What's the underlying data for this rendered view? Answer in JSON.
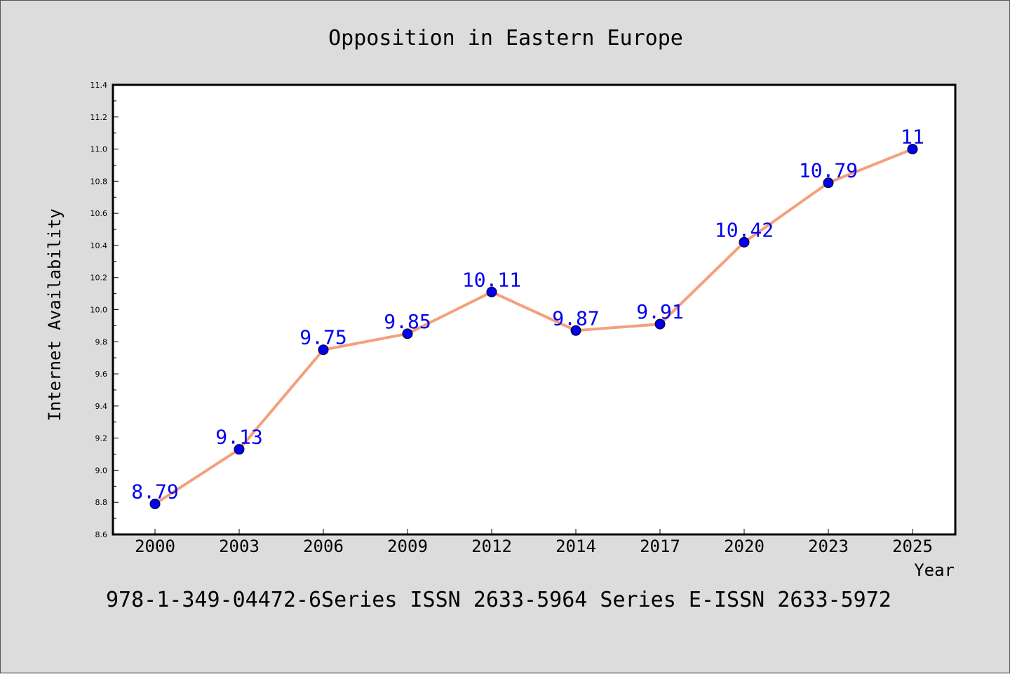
{
  "chart_data": {
    "type": "line",
    "title": "Opposition in Eastern Europe",
    "xlabel": "Year",
    "ylabel": "Internet Availability",
    "categories": [
      "2000",
      "2003",
      "2006",
      "2009",
      "2012",
      "2014",
      "2017",
      "2020",
      "2023",
      "2025"
    ],
    "series": [
      {
        "values": [
          8.79,
          9.13,
          9.75,
          9.85,
          10.11,
          9.87,
          9.91,
          10.42,
          10.79,
          11
        ],
        "value_labels": [
          "8.79",
          "9.13",
          "9.75",
          "9.85",
          "10.11",
          "9.87",
          "9.91",
          "10.42",
          "10.79",
          "11"
        ],
        "line_color": "#f4a07c",
        "marker_color": "#0000ee",
        "label_color": "#0000ee"
      }
    ],
    "ylim": [
      8.6,
      11.4
    ],
    "yticks": [
      "8.6",
      "8.8",
      "9.0",
      "9.2",
      "9.4",
      "9.6",
      "9.8",
      "10.0",
      "10.2",
      "10.4",
      "10.6",
      "10.8",
      "11.0",
      "11.2",
      "11.4"
    ],
    "grid": false,
    "legend": "none"
  },
  "footer_text": "978-1-349-04472-6Series ISSN 2633-5964 Series E-ISSN 2633-5972",
  "colors": {
    "background": "#dcdcdc",
    "plot_background": "#ffffff",
    "axis": "#000000"
  }
}
